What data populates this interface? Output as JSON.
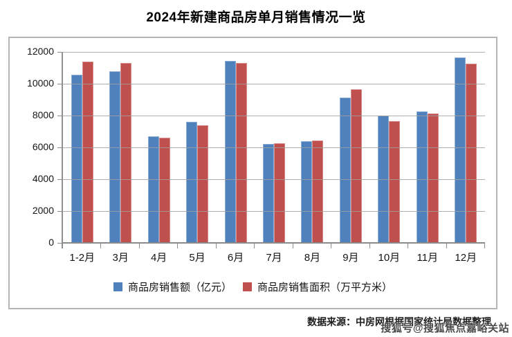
{
  "page": {
    "title": "2024年新建商品房单月销售情况一览"
  },
  "chart_data": {
    "type": "bar",
    "title": "2024年新建商品房单月销售情况一览",
    "categories": [
      "1-2月",
      "3月",
      "4月",
      "5月",
      "6月",
      "7月",
      "8月",
      "9月",
      "10月",
      "11月",
      "12月"
    ],
    "series": [
      {
        "key": "sales-amount",
        "name": "商品房销售额（亿元）",
        "color": "#4F81BD",
        "values": [
          10550,
          10800,
          6700,
          7600,
          11450,
          6200,
          6400,
          9150,
          8000,
          8250,
          11650
        ]
      },
      {
        "key": "sales-area",
        "name": "商品房销售面积（万平方米）",
        "color": "#C0504D",
        "values": [
          11400,
          11300,
          6600,
          7400,
          11300,
          6250,
          6450,
          9650,
          7650,
          8150,
          11250
        ]
      }
    ],
    "ylim": [
      0,
      12000
    ],
    "yticks": [
      0,
      2000,
      4000,
      6000,
      8000,
      10000,
      12000
    ],
    "grid": true,
    "legend_position": "bottom"
  },
  "footer": {
    "source_text": "数据来源：中房网根据国家统计局数据整理",
    "watermark": "搜狐号@搜狐焦点嘉峪关站"
  },
  "colors": {
    "series_blue": "#4F81BD",
    "series_red": "#C0504D",
    "gridline": "#A0A0A0",
    "axis": "#8A8A8A",
    "frame_border": "#B5B5B5"
  }
}
